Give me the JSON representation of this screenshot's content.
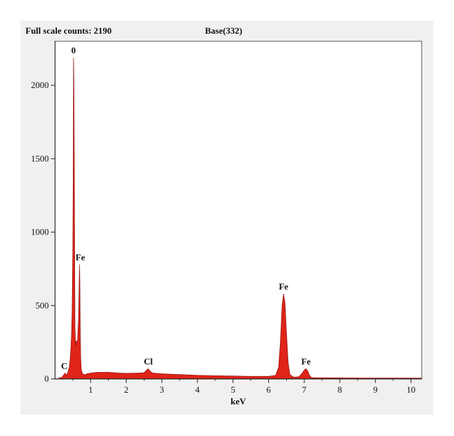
{
  "header": {
    "full_scale": "Full scale counts: 2190",
    "base": "Base(332)"
  },
  "chart_data": {
    "type": "area",
    "title": "",
    "xlabel": "keV",
    "ylabel": "",
    "xlim": [
      0,
      10.3
    ],
    "ylim": [
      0,
      2300
    ],
    "x_ticks": [
      1,
      2,
      3,
      4,
      5,
      6,
      7,
      8,
      9,
      10
    ],
    "y_ticks": [
      0,
      500,
      1000,
      1500,
      2000
    ],
    "grid": false,
    "fill_color": "#e02418",
    "line_color": "#8c0f0a",
    "series": [
      {
        "x": [
          0.1,
          0.2,
          0.28,
          0.32,
          0.36,
          0.4,
          0.43,
          0.46,
          0.48,
          0.5,
          0.51,
          0.52,
          0.53,
          0.54,
          0.55,
          0.56,
          0.58,
          0.6,
          0.63,
          0.66,
          0.68,
          0.69,
          0.7,
          0.71,
          0.72,
          0.74,
          0.77,
          0.8,
          0.85,
          0.9,
          1.0,
          1.2,
          1.5,
          1.8,
          2.0,
          2.3,
          2.5,
          2.55,
          2.62,
          2.68,
          2.75,
          3.0,
          3.5,
          4.0,
          4.5,
          5.0,
          5.5,
          6.0,
          6.2,
          6.28,
          6.33,
          6.38,
          6.42,
          6.46,
          6.5,
          6.55,
          6.6,
          6.7,
          6.85,
          6.95,
          7.0,
          7.05,
          7.1,
          7.15,
          7.2,
          7.3,
          7.5,
          8.0,
          9.0,
          10.0,
          10.3
        ],
        "y": [
          5,
          12,
          40,
          25,
          45,
          80,
          150,
          280,
          450,
          900,
          1400,
          2190,
          2050,
          1600,
          900,
          350,
          220,
          260,
          250,
          420,
          700,
          780,
          620,
          350,
          140,
          60,
          40,
          30,
          30,
          35,
          40,
          45,
          45,
          40,
          38,
          40,
          42,
          55,
          70,
          50,
          40,
          35,
          30,
          25,
          22,
          20,
          18,
          18,
          25,
          80,
          250,
          500,
          580,
          520,
          320,
          110,
          30,
          12,
          15,
          40,
          60,
          70,
          55,
          25,
          10,
          8,
          8,
          7,
          6,
          6,
          5
        ]
      }
    ],
    "annotations": [
      {
        "text": "0",
        "x": 0.52,
        "y": 2190
      },
      {
        "text": "Fe",
        "x": 0.71,
        "y": 780
      },
      {
        "text": "C",
        "x": 0.26,
        "y": 40
      },
      {
        "text": "Cl",
        "x": 2.62,
        "y": 70
      },
      {
        "text": "Fe",
        "x": 6.42,
        "y": 580
      },
      {
        "text": "Fe",
        "x": 7.05,
        "y": 70
      }
    ]
  }
}
